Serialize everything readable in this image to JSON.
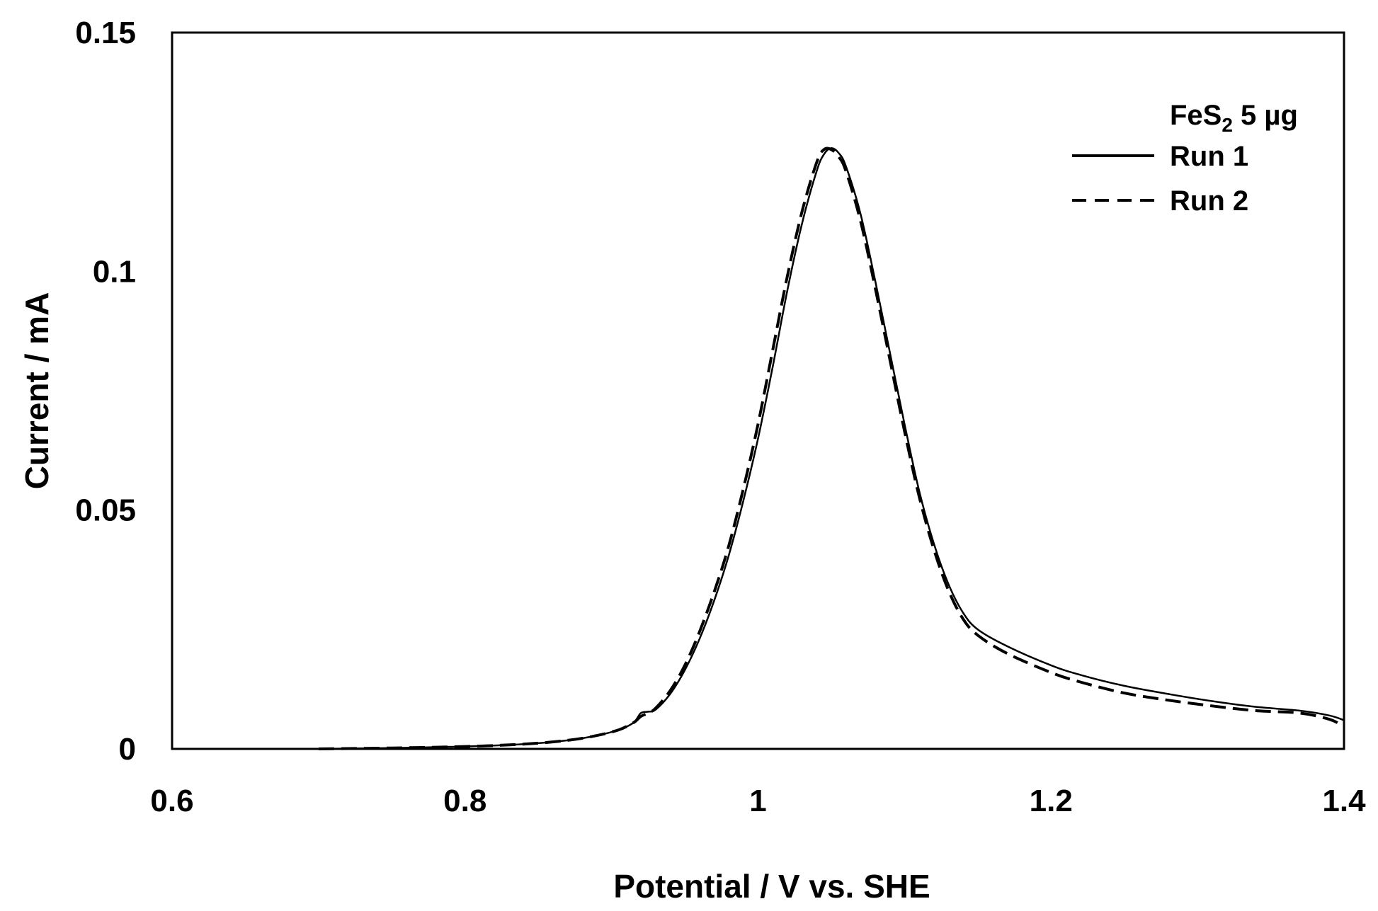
{
  "chart_data": {
    "type": "line",
    "xlabel": "Potential / V vs. SHE",
    "ylabel": "Current / mA",
    "xlim": [
      0.6,
      1.4
    ],
    "ylim": [
      0,
      0.15
    ],
    "xticks": [
      0.6,
      0.8,
      1.0,
      1.2,
      1.4
    ],
    "xtick_labels": [
      "0.6",
      "0.8",
      "1",
      "1.2",
      "1.4"
    ],
    "yticks": [
      0,
      0.05,
      0.1,
      0.15
    ],
    "ytick_labels": [
      "0",
      "0.05",
      "0.1",
      "0.15"
    ],
    "grid": false,
    "legend": {
      "position": "top-right",
      "title_main": "FeS",
      "title_sub": "2",
      "title_rest": " 5 µg"
    },
    "series": [
      {
        "name": "Run 1",
        "style": "solid",
        "color": "#000000",
        "x": [
          0.7,
          0.75,
          0.8,
          0.84,
          0.87,
          0.89,
          0.905,
          0.915,
          0.92,
          0.925,
          0.93,
          0.94,
          0.95,
          0.96,
          0.97,
          0.98,
          0.99,
          1.0,
          1.01,
          1.02,
          1.03,
          1.04,
          1.045,
          1.05,
          1.055,
          1.06,
          1.07,
          1.08,
          1.09,
          1.1,
          1.11,
          1.12,
          1.13,
          1.14,
          1.15,
          1.17,
          1.2,
          1.22,
          1.25,
          1.28,
          1.31,
          1.34,
          1.37,
          1.39,
          1.4
        ],
        "y": [
          0.0,
          0.0002,
          0.0005,
          0.001,
          0.0018,
          0.0028,
          0.004,
          0.0055,
          0.0075,
          0.0078,
          0.0082,
          0.0115,
          0.0165,
          0.023,
          0.031,
          0.0405,
          0.052,
          0.065,
          0.08,
          0.096,
          0.11,
          0.121,
          0.1245,
          0.1258,
          0.1248,
          0.122,
          0.112,
          0.098,
          0.083,
          0.068,
          0.054,
          0.043,
          0.0345,
          0.0285,
          0.025,
          0.0215,
          0.0175,
          0.0155,
          0.0132,
          0.0115,
          0.01,
          0.0088,
          0.008,
          0.007,
          0.006
        ]
      },
      {
        "name": "Run 2",
        "style": "dashed",
        "color": "#000000",
        "x": [
          0.7,
          0.75,
          0.8,
          0.84,
          0.87,
          0.89,
          0.905,
          0.915,
          0.92,
          0.925,
          0.93,
          0.94,
          0.95,
          0.96,
          0.97,
          0.98,
          0.99,
          1.0,
          1.01,
          1.02,
          1.03,
          1.04,
          1.045,
          1.05,
          1.055,
          1.06,
          1.07,
          1.08,
          1.09,
          1.1,
          1.11,
          1.12,
          1.13,
          1.14,
          1.15,
          1.17,
          1.2,
          1.22,
          1.25,
          1.28,
          1.31,
          1.34,
          1.37,
          1.39,
          1.4
        ],
        "y": [
          0.0,
          0.0002,
          0.0005,
          0.001,
          0.0018,
          0.0028,
          0.004,
          0.0055,
          0.0068,
          0.0075,
          0.0085,
          0.0122,
          0.0175,
          0.0245,
          0.0328,
          0.0425,
          0.0545,
          0.068,
          0.0835,
          0.099,
          0.1125,
          0.1228,
          0.1255,
          0.1255,
          0.124,
          0.121,
          0.1105,
          0.0965,
          0.0815,
          0.0665,
          0.0528,
          0.0418,
          0.0332,
          0.0272,
          0.0238,
          0.02,
          0.016,
          0.014,
          0.0117,
          0.0102,
          0.009,
          0.008,
          0.0075,
          0.0062,
          0.0047
        ]
      }
    ]
  }
}
